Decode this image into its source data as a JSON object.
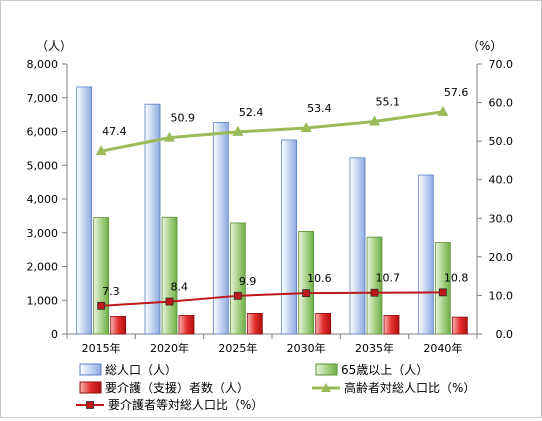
{
  "chart_data": {
    "type": "bar",
    "categories": [
      "2015年",
      "2020年",
      "2025年",
      "2030年",
      "2035年",
      "2040年"
    ],
    "y_left": {
      "unit": "（人）",
      "min": 0,
      "max": 8000,
      "step": 1000,
      "ticks": [
        "0",
        "1,000",
        "2,000",
        "3,000",
        "4,000",
        "5,000",
        "6,000",
        "7,000",
        "8,000"
      ]
    },
    "y_right": {
      "unit": "（%）",
      "min": 0,
      "max": 70,
      "step": 10,
      "ticks": [
        "0.0",
        "10.0",
        "20.0",
        "30.0",
        "40.0",
        "50.0",
        "60.0",
        "70.0"
      ]
    },
    "series": [
      {
        "name": "総人口（人）",
        "type": "bar",
        "axis": "left",
        "color": "#9bb7e6",
        "values": [
          7320,
          6810,
          6270,
          5750,
          5220,
          4710
        ]
      },
      {
        "name": "65歳以上（人）",
        "type": "bar",
        "axis": "left",
        "color": "#8ec46a",
        "values": [
          3450,
          3460,
          3290,
          3040,
          2870,
          2710
        ]
      },
      {
        "name": "要介護（支援）者数（人）",
        "type": "bar",
        "axis": "left",
        "color": "#e02020",
        "values": [
          520,
          550,
          610,
          610,
          550,
          500
        ]
      },
      {
        "name": "高齢者対総人口比（%）",
        "type": "line",
        "axis": "right",
        "color": "#9bbb59",
        "marker": "triangle",
        "values": [
          47.4,
          50.9,
          52.4,
          53.4,
          55.1,
          57.6
        ],
        "labels": [
          "47.4",
          "50.9",
          "52.4",
          "53.4",
          "55.1",
          "57.6"
        ]
      },
      {
        "name": "要介護者等対総人口比（%）",
        "type": "line",
        "axis": "right",
        "color": "#c0171d",
        "marker": "square",
        "values": [
          7.3,
          8.4,
          9.9,
          10.6,
          10.7,
          10.8
        ],
        "labels": [
          "7.3",
          "8.4",
          "9.9",
          "10.6",
          "10.7",
          "10.8"
        ]
      }
    ],
    "grid": false,
    "legend_position": "bottom"
  }
}
